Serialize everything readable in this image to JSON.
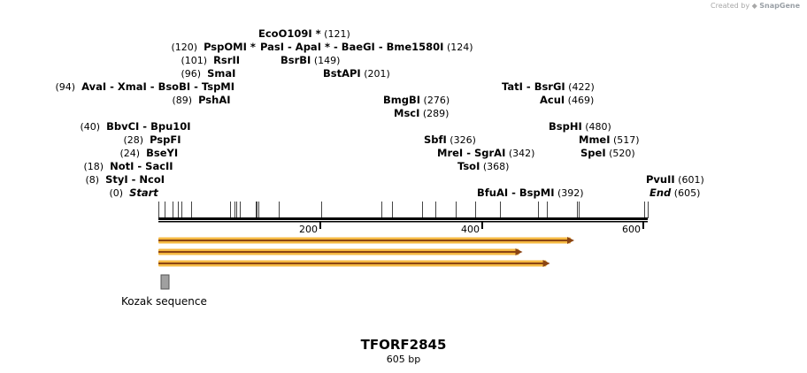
{
  "credit": {
    "prefix": "Created by",
    "brand": "SnapGene"
  },
  "map": {
    "name": "TFORF2845",
    "length_label": "605 bp",
    "length": 605,
    "ticks": [
      {
        "value": 200,
        "label": "200"
      },
      {
        "value": 400,
        "label": "400"
      },
      {
        "value": 600,
        "label": "600"
      }
    ],
    "labels": [
      {
        "row": 12,
        "items": [
          {
            "name": "EcoO109I *",
            "pos": 121,
            "num": "(121)"
          }
        ]
      },
      {
        "row": 11,
        "items": [
          {
            "name": "PspOMI *",
            "pos": 120,
            "num": "(120)"
          },
          {
            "name": "PasI",
            "pos": 124
          },
          {
            "name": "ApaI *",
            "pos": 124
          },
          {
            "name": "BaeGI",
            "pos": 124
          },
          {
            "name": "Bme1580I",
            "pos": 124,
            "num": "(124)"
          }
        ]
      },
      {
        "row": 10,
        "items": [
          {
            "name": "RsrII",
            "pos": 101,
            "num": "(101)"
          },
          {
            "name": "BsrBI",
            "pos": 149,
            "num": "(149)"
          }
        ]
      },
      {
        "row": 9,
        "items": [
          {
            "name": "SmaI",
            "pos": 96,
            "num": "(96)"
          },
          {
            "name": "BstAPI",
            "pos": 201,
            "num": "(201)"
          }
        ]
      },
      {
        "row": 8,
        "items": [
          {
            "name": "AvaI",
            "pos": 94,
            "num": "(94)"
          },
          {
            "name": "XmaI",
            "pos": 94
          },
          {
            "name": "BsoBI",
            "pos": 94
          },
          {
            "name": "TspMI",
            "pos": 94
          },
          {
            "name": "TatI",
            "pos": 422
          },
          {
            "name": "BsrGI",
            "pos": 422,
            "num": "(422)"
          }
        ]
      },
      {
        "row": 7,
        "items": [
          {
            "name": "PshAI",
            "pos": 89,
            "num": "(89)"
          },
          {
            "name": "BmgBI",
            "pos": 276,
            "num": "(276)"
          },
          {
            "name": "AcuI",
            "pos": 469,
            "num": "(469)"
          }
        ]
      },
      {
        "row": 6,
        "items": [
          {
            "name": "MscI",
            "pos": 289,
            "num": "(289)"
          }
        ]
      },
      {
        "row": 5,
        "items": [
          {
            "name": "BbvCI",
            "pos": 40,
            "num": "(40)"
          },
          {
            "name": "Bpu10I",
            "pos": 40
          },
          {
            "name": "BspHI",
            "pos": 480,
            "num": "(480)"
          }
        ]
      },
      {
        "row": 4,
        "items": [
          {
            "name": "PspFI",
            "pos": 28,
            "num": "(28)"
          },
          {
            "name": "SbfI",
            "pos": 326,
            "num": "(326)"
          },
          {
            "name": "MmeI",
            "pos": 517,
            "num": "(517)"
          }
        ]
      },
      {
        "row": 3,
        "items": [
          {
            "name": "BseYI",
            "pos": 24,
            "num": "(24)"
          },
          {
            "name": "MreI",
            "pos": 342
          },
          {
            "name": "SgrAI",
            "pos": 342,
            "num": "(342)"
          },
          {
            "name": "SpeI",
            "pos": 520,
            "num": "(520)"
          }
        ]
      },
      {
        "row": 2,
        "items": [
          {
            "name": "NotI",
            "pos": 18,
            "num": "(18)"
          },
          {
            "name": "SacII",
            "pos": 18
          },
          {
            "name": "TsoI",
            "pos": 368,
            "num": "(368)"
          }
        ]
      },
      {
        "row": 1,
        "items": [
          {
            "name": "StyI",
            "pos": 8,
            "num": "(8)"
          },
          {
            "name": "NcoI",
            "pos": 8
          },
          {
            "name": "PvuII",
            "pos": 601,
            "num": "(601)"
          }
        ]
      },
      {
        "row": 0,
        "items": [
          {
            "name": "Start",
            "pos": 0,
            "num": "(0)",
            "italic": true
          },
          {
            "name": "BfuAI",
            "pos": 392
          },
          {
            "name": "BspMI",
            "pos": 392,
            "num": "(392)"
          },
          {
            "name": "End",
            "pos": 605,
            "num": "(605)",
            "italic": true
          }
        ]
      }
    ],
    "cut_sites": [
      0,
      8,
      18,
      24,
      28,
      40,
      89,
      94,
      96,
      101,
      120,
      121,
      124,
      149,
      201,
      276,
      289,
      326,
      342,
      368,
      392,
      422,
      469,
      480,
      517,
      520,
      601,
      605
    ],
    "orfs": [
      {
        "start": 0,
        "end": 512
      },
      {
        "start": 0,
        "end": 448
      },
      {
        "start": 0,
        "end": 482
      }
    ],
    "feature": {
      "label": "Kozak sequence",
      "start": 0,
      "end": 10
    }
  },
  "colors": {
    "orf_outline": "#f5b942",
    "orf_core": "#8b4513",
    "feature_fill": "#a0a0a0",
    "text": "#000000",
    "credit": "#a8a8a8"
  }
}
